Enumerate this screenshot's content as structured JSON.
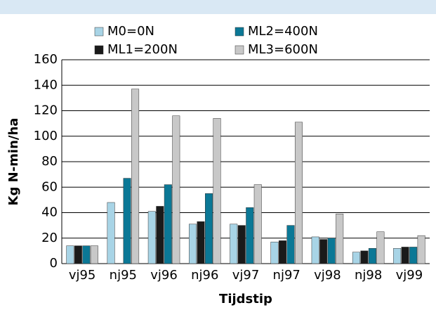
{
  "chart_data": {
    "type": "bar",
    "categories": [
      "vj95",
      "nj95",
      "vj96",
      "nj96",
      "vj97",
      "nj97",
      "vj98",
      "nj98",
      "vj99"
    ],
    "series": [
      {
        "name": "M0=0N",
        "color": "#a8d4e6",
        "values": [
          14,
          48,
          41,
          31,
          31,
          17,
          21,
          9,
          12
        ]
      },
      {
        "name": "ML1=200N",
        "color": "#1a1a1a",
        "values": [
          14,
          null,
          45,
          33,
          30,
          18,
          19,
          10,
          13
        ]
      },
      {
        "name": "ML2=400N",
        "color": "#0b7896",
        "values": [
          14,
          67,
          62,
          55,
          44,
          30,
          20,
          12,
          13
        ]
      },
      {
        "name": "ML3=600N",
        "color": "#c8c8c8",
        "values": [
          14,
          137,
          116,
          114,
          62,
          111,
          39,
          25,
          22
        ]
      }
    ],
    "xlabel": "Tijdstip",
    "ylabel": "Kg N-min/ha",
    "ylim": [
      0,
      160
    ],
    "yticks": [
      0,
      20,
      40,
      60,
      80,
      100,
      120,
      140,
      160
    ],
    "grid": true
  }
}
